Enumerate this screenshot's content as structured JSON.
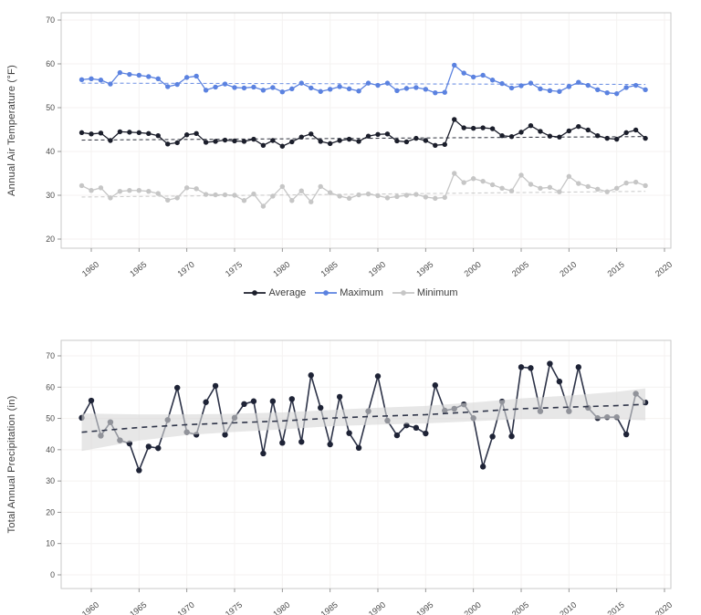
{
  "colors": {
    "average": "#1b1e2b",
    "maximum": "#5b82e0",
    "minimum": "#c6c6c6",
    "precipitation_line": "#2c3247",
    "precipitation_dot": "#1e2336",
    "trend_band": "#d9d9d9",
    "grid": "#f4f2f1",
    "frame": "#c9c9c9",
    "tick": "#8a8a8a",
    "tick_text": "#4d4d4d"
  },
  "legend": {
    "items": [
      {
        "label": "Average",
        "color": "#1b1e2b"
      },
      {
        "label": "Maximum",
        "color": "#5b82e0"
      },
      {
        "label": "Minimum",
        "color": "#c6c6c6"
      }
    ]
  },
  "chart_data": [
    {
      "type": "line",
      "title": "",
      "xlabel": "",
      "ylabel": "Annual Air Temperature (°F)",
      "x": [
        1959,
        1960,
        1961,
        1962,
        1963,
        1964,
        1965,
        1966,
        1967,
        1968,
        1969,
        1970,
        1971,
        1972,
        1973,
        1974,
        1975,
        1976,
        1977,
        1978,
        1979,
        1980,
        1981,
        1982,
        1983,
        1984,
        1985,
        1986,
        1987,
        1988,
        1989,
        1990,
        1991,
        1992,
        1993,
        1994,
        1995,
        1996,
        1997,
        1998,
        1999,
        2000,
        2001,
        2002,
        2003,
        2004,
        2005,
        2006,
        2007,
        2008,
        2009,
        2010,
        2011,
        2012,
        2013,
        2014,
        2015,
        2016,
        2017,
        2018
      ],
      "xticks": [
        1960,
        1965,
        1970,
        1975,
        1980,
        1985,
        1990,
        1995,
        2000,
        2005,
        2010,
        2015,
        2020
      ],
      "yticks": [
        20,
        30,
        40,
        50,
        60,
        70
      ],
      "ylim": [
        18,
        72
      ],
      "grid": true,
      "legend_position": "bottom",
      "series": [
        {
          "name": "Average",
          "color": "#1b1e2b",
          "trend": [
            42.6,
            43.4
          ],
          "values": [
            44.3,
            44.0,
            44.2,
            42.5,
            44.5,
            44.4,
            44.3,
            44.1,
            43.6,
            41.7,
            42.0,
            43.8,
            44.1,
            42.1,
            42.3,
            42.6,
            42.4,
            42.3,
            42.8,
            41.4,
            42.5,
            41.2,
            42.2,
            43.3,
            44.0,
            42.3,
            41.8,
            42.5,
            42.8,
            42.3,
            43.5,
            43.9,
            44.0,
            42.4,
            42.2,
            43.0,
            42.5,
            41.4,
            41.6,
            47.3,
            45.4,
            45.3,
            45.4,
            45.2,
            43.6,
            43.4,
            44.4,
            45.9,
            44.6,
            43.5,
            43.3,
            44.7,
            45.7,
            44.9,
            43.6,
            43.0,
            42.8,
            44.3,
            44.9,
            43.0
          ]
        },
        {
          "name": "Maximum",
          "color": "#5b82e0",
          "trend": [
            55.6,
            55.3
          ],
          "values": [
            56.4,
            56.6,
            56.3,
            55.4,
            58.0,
            57.6,
            57.4,
            57.1,
            56.6,
            54.8,
            55.3,
            56.9,
            57.2,
            54.0,
            54.7,
            55.4,
            54.6,
            54.5,
            54.7,
            54.0,
            54.6,
            53.6,
            54.3,
            55.6,
            54.5,
            53.7,
            54.2,
            54.8,
            54.3,
            53.8,
            55.6,
            55.1,
            55.6,
            53.9,
            54.4,
            54.6,
            54.2,
            53.4,
            53.5,
            59.7,
            57.9,
            57.0,
            57.4,
            56.3,
            55.5,
            54.5,
            55.0,
            55.6,
            54.3,
            53.9,
            53.7,
            54.8,
            55.8,
            55.1,
            54.1,
            53.4,
            53.2,
            54.6,
            55.1,
            54.1
          ]
        },
        {
          "name": "Minimum",
          "color": "#c6c6c6",
          "trend": [
            29.6,
            30.9
          ],
          "values": [
            32.2,
            31.1,
            31.7,
            29.4,
            30.9,
            31.1,
            31.1,
            30.9,
            30.4,
            28.9,
            29.4,
            31.7,
            31.5,
            30.2,
            30.1,
            30.1,
            30.0,
            28.8,
            30.3,
            27.5,
            29.8,
            32.0,
            28.8,
            31.0,
            28.5,
            32.0,
            30.6,
            29.8,
            29.3,
            30.1,
            30.3,
            29.9,
            29.4,
            29.7,
            30.0,
            30.2,
            29.6,
            29.3,
            29.5,
            35.0,
            32.9,
            33.8,
            33.2,
            32.4,
            31.6,
            31.0,
            34.6,
            32.5,
            31.6,
            31.8,
            30.8,
            34.3,
            32.7,
            32.0,
            31.4,
            30.8,
            31.6,
            32.8,
            33.0,
            32.2
          ]
        }
      ]
    },
    {
      "type": "line",
      "title": "",
      "xlabel": "",
      "ylabel": "Total Annual Precipitation (in)",
      "x": [
        1959,
        1960,
        1961,
        1962,
        1963,
        1964,
        1965,
        1966,
        1967,
        1968,
        1969,
        1970,
        1971,
        1972,
        1973,
        1974,
        1975,
        1976,
        1977,
        1978,
        1979,
        1980,
        1981,
        1982,
        1983,
        1984,
        1985,
        1986,
        1987,
        1988,
        1989,
        1990,
        1991,
        1992,
        1993,
        1994,
        1995,
        1996,
        1997,
        1998,
        1999,
        2000,
        2001,
        2002,
        2003,
        2004,
        2005,
        2006,
        2007,
        2008,
        2009,
        2010,
        2011,
        2012,
        2013,
        2014,
        2015,
        2016,
        2017,
        2018
      ],
      "xticks": [
        1960,
        1965,
        1970,
        1975,
        1980,
        1985,
        1990,
        1995,
        2000,
        2005,
        2010,
        2015,
        2020
      ],
      "yticks": [
        0,
        10,
        20,
        30,
        40,
        50,
        60,
        70
      ],
      "ylim": [
        -4,
        74
      ],
      "grid": true,
      "series": [
        {
          "name": "Total Annual Precipitation",
          "color": "#2c3247",
          "values": [
            50.2,
            55.7,
            44.5,
            48.8,
            43.0,
            42.0,
            33.4,
            41.0,
            40.5,
            49.5,
            59.8,
            45.6,
            44.8,
            55.2,
            60.4,
            44.8,
            50.2,
            54.6,
            55.5,
            38.8,
            55.5,
            42.2,
            56.2,
            42.5,
            63.8,
            53.4,
            41.7,
            56.9,
            45.3,
            40.6,
            52.3,
            63.5,
            49.3,
            44.6,
            47.8,
            47.0,
            45.2,
            60.6,
            52.5,
            53.1,
            54.5,
            50.1,
            34.6,
            44.2,
            55.4,
            44.3,
            66.4,
            66.1,
            52.3,
            67.5,
            61.8,
            52.3,
            66.4,
            53.4,
            50.1,
            50.4,
            50.4,
            44.9,
            57.9,
            55.1
          ]
        }
      ],
      "trend": {
        "style": "dashed",
        "years": [
          1959,
          1965,
          1970,
          1975,
          1980,
          1985,
          1990,
          1995,
          2000,
          2005,
          2010,
          2015,
          2018
        ],
        "center": [
          45.6,
          47.1,
          48.0,
          48.6,
          49.2,
          50.1,
          50.7,
          51.2,
          52.1,
          53.1,
          53.6,
          54.1,
          54.5
        ],
        "half_width": [
          6.0,
          4.2,
          3.3,
          2.9,
          2.7,
          2.6,
          2.7,
          2.8,
          3.0,
          3.3,
          3.7,
          4.4,
          5.1
        ]
      }
    }
  ]
}
